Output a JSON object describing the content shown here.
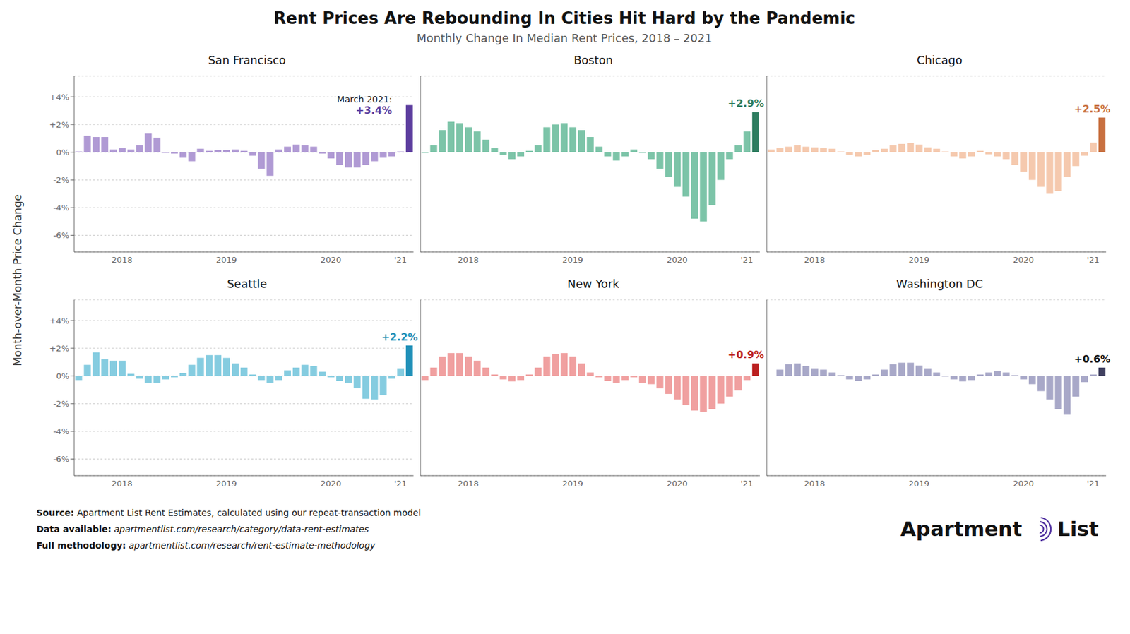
{
  "title": "Rent Prices Are Rebounding In Cities Hit Hard by the Pandemic",
  "subtitle": "Monthly Change In Median Rent Prices, 2018 – 2021",
  "ylabel": "Month-over-Month Price Change",
  "footer": [
    {
      "label": "Source:",
      "text": "Apartment List Rent Estimates, calculated using our repeat-transaction model"
    },
    {
      "label": "Data available:",
      "text": "apartmentlist.com/research/category/data-rent-estimates"
    },
    {
      "label": "Full methodology:",
      "text": "apartmentlist.com/research/rent-estimate-methodology"
    }
  ],
  "logo": [
    "Apartment",
    "List"
  ],
  "chart_data": [
    {
      "type": "bar",
      "title": "San Francisco",
      "categories": [
        null,
        null,
        null,
        null,
        null,
        "2018",
        null,
        null,
        null,
        null,
        null,
        null,
        null,
        null,
        null,
        null,
        null,
        "2019",
        null,
        null,
        null,
        null,
        null,
        null,
        null,
        null,
        null,
        null,
        null,
        "2020",
        null,
        null,
        null,
        null,
        null,
        null,
        null,
        "'21",
        null
      ],
      "values": [
        0.05,
        1.2,
        1.1,
        1.1,
        0.2,
        0.3,
        0.2,
        0.5,
        1.35,
        1.05,
        -0.05,
        -0.1,
        -0.4,
        -0.65,
        0.25,
        0.1,
        0.15,
        0.15,
        0.2,
        0.1,
        -0.25,
        -1.2,
        -1.7,
        0.2,
        0.4,
        0.55,
        0.5,
        0.4,
        -0.1,
        -0.45,
        -0.9,
        -1.1,
        -1.1,
        -0.9,
        -0.65,
        -0.4,
        -0.3,
        0.05,
        3.4
      ],
      "colors": [
        "#b09ad4",
        "#b09ad4",
        "#b09ad4",
        "#b09ad4",
        "#b09ad4",
        "#b09ad4",
        "#b09ad4",
        "#b09ad4",
        "#b09ad4",
        "#b09ad4",
        "#b09ad4",
        "#b09ad4",
        "#b09ad4",
        "#b09ad4",
        "#b09ad4",
        "#b09ad4",
        "#b09ad4",
        "#b09ad4",
        "#b09ad4",
        "#b09ad4",
        "#b09ad4",
        "#b09ad4",
        "#b09ad4",
        "#b09ad4",
        "#b09ad4",
        "#b09ad4",
        "#b09ad4",
        "#b09ad4",
        "#b09ad4",
        "#b09ad4",
        "#b09ad4",
        "#b09ad4",
        "#b09ad4",
        "#b09ad4",
        "#b09ad4",
        "#b09ad4",
        "#b09ad4",
        "#b09ad4",
        "#5c3d9e"
      ],
      "ylim": [
        -7.2,
        5.5
      ],
      "yticks": [
        {
          "value": -6,
          "label": "-6%"
        },
        {
          "value": -4,
          "label": "-4%"
        },
        {
          "value": -2,
          "label": "-2%"
        },
        {
          "value": 0,
          "label": "0%"
        },
        {
          "value": 2,
          "label": "+2%"
        },
        {
          "value": 4,
          "label": "+4%"
        }
      ],
      "grid": true,
      "annotations": [
        {
          "text": "March 2021:",
          "color": "#111111"
        },
        {
          "text": "+3.4%",
          "color": "#5c3d9e"
        }
      ]
    },
    {
      "type": "bar",
      "title": "Boston",
      "categories": [
        null,
        null,
        null,
        null,
        null,
        "2018",
        null,
        null,
        null,
        null,
        null,
        null,
        null,
        null,
        null,
        null,
        null,
        "2019",
        null,
        null,
        null,
        null,
        null,
        null,
        null,
        null,
        null,
        null,
        null,
        "2020",
        null,
        null,
        null,
        null,
        null,
        null,
        null,
        "'21",
        null
      ],
      "values": [
        -0.05,
        0.5,
        1.6,
        2.2,
        2.1,
        1.8,
        1.5,
        0.9,
        0.3,
        -0.2,
        -0.5,
        -0.3,
        0.1,
        0.5,
        1.8,
        2.0,
        2.1,
        1.8,
        1.6,
        1.1,
        0.4,
        -0.3,
        -0.6,
        -0.3,
        0.2,
        -0.05,
        -0.5,
        -1.2,
        -1.8,
        -2.5,
        -3.2,
        -4.8,
        -5.0,
        -3.8,
        -2.0,
        -0.5,
        0.5,
        1.5,
        2.9
      ],
      "colors": [
        "#7cc4a8",
        "#7cc4a8",
        "#7cc4a8",
        "#7cc4a8",
        "#7cc4a8",
        "#7cc4a8",
        "#7cc4a8",
        "#7cc4a8",
        "#7cc4a8",
        "#7cc4a8",
        "#7cc4a8",
        "#7cc4a8",
        "#7cc4a8",
        "#7cc4a8",
        "#7cc4a8",
        "#7cc4a8",
        "#7cc4a8",
        "#7cc4a8",
        "#7cc4a8",
        "#7cc4a8",
        "#7cc4a8",
        "#7cc4a8",
        "#7cc4a8",
        "#7cc4a8",
        "#7cc4a8",
        "#7cc4a8",
        "#7cc4a8",
        "#7cc4a8",
        "#7cc4a8",
        "#7cc4a8",
        "#7cc4a8",
        "#7cc4a8",
        "#7cc4a8",
        "#7cc4a8",
        "#7cc4a8",
        "#7cc4a8",
        "#7cc4a8",
        "#7cc4a8",
        "#2e7d60"
      ],
      "ylim": [
        -7.2,
        5.5
      ],
      "yticks": [
        {
          "value": -6,
          "label": "-6%"
        },
        {
          "value": -4,
          "label": "-4%"
        },
        {
          "value": -2,
          "label": "-2%"
        },
        {
          "value": 0,
          "label": "0%"
        },
        {
          "value": 2,
          "label": "+2%"
        },
        {
          "value": 4,
          "label": "+4%"
        }
      ],
      "grid": true,
      "tick_labels": "x",
      "annotations": [
        {
          "text": "+2.9%",
          "color": "#2e7d60"
        }
      ]
    },
    {
      "type": "bar",
      "title": "Chicago",
      "categories": [
        null,
        null,
        null,
        null,
        null,
        "2018",
        null,
        null,
        null,
        null,
        null,
        null,
        null,
        null,
        null,
        null,
        null,
        "2019",
        null,
        null,
        null,
        null,
        null,
        null,
        null,
        null,
        null,
        null,
        null,
        "2020",
        null,
        null,
        null,
        null,
        null,
        null,
        null,
        "'21",
        null
      ],
      "values": [
        0.2,
        0.3,
        0.4,
        0.5,
        0.4,
        0.35,
        0.3,
        0.25,
        0.05,
        -0.2,
        -0.3,
        -0.2,
        0.15,
        0.25,
        0.5,
        0.6,
        0.65,
        0.55,
        0.35,
        0.25,
        0.05,
        -0.3,
        -0.45,
        -0.3,
        0.1,
        -0.15,
        -0.3,
        -0.5,
        -0.9,
        -1.4,
        -2.0,
        -2.5,
        -3.0,
        -2.8,
        -1.8,
        -1.0,
        -0.25,
        0.7,
        2.5
      ],
      "colors": [
        "#f5c9ae",
        "#f5c9ae",
        "#f5c9ae",
        "#f5c9ae",
        "#f5c9ae",
        "#f5c9ae",
        "#f5c9ae",
        "#f5c9ae",
        "#f5c9ae",
        "#f5c9ae",
        "#f5c9ae",
        "#f5c9ae",
        "#f5c9ae",
        "#f5c9ae",
        "#f5c9ae",
        "#f5c9ae",
        "#f5c9ae",
        "#f5c9ae",
        "#f5c9ae",
        "#f5c9ae",
        "#f5c9ae",
        "#f5c9ae",
        "#f5c9ae",
        "#f5c9ae",
        "#f5c9ae",
        "#f5c9ae",
        "#f5c9ae",
        "#f5c9ae",
        "#f5c9ae",
        "#f5c9ae",
        "#f5c9ae",
        "#f5c9ae",
        "#f5c9ae",
        "#f5c9ae",
        "#f5c9ae",
        "#f5c9ae",
        "#f5c9ae",
        "#f5c9ae",
        "#c87040"
      ],
      "ylim": [
        -7.2,
        5.5
      ],
      "yticks": [
        {
          "value": -6,
          "label": "-6%"
        },
        {
          "value": -4,
          "label": "-4%"
        },
        {
          "value": -2,
          "label": "-2%"
        },
        {
          "value": 0,
          "label": "0%"
        },
        {
          "value": 2,
          "label": "+2%"
        },
        {
          "value": 4,
          "label": "+4%"
        }
      ],
      "grid": true,
      "tick_labels": "x",
      "annotations": [
        {
          "text": "+2.5%",
          "color": "#c87040"
        }
      ]
    },
    {
      "type": "bar",
      "title": "Seattle",
      "categories": [
        null,
        null,
        null,
        null,
        null,
        "2018",
        null,
        null,
        null,
        null,
        null,
        null,
        null,
        null,
        null,
        null,
        null,
        "2019",
        null,
        null,
        null,
        null,
        null,
        null,
        null,
        null,
        null,
        null,
        null,
        "2020",
        null,
        null,
        null,
        null,
        null,
        null,
        null,
        "'21",
        null
      ],
      "values": [
        -0.3,
        0.8,
        1.7,
        1.2,
        1.1,
        1.1,
        0.15,
        -0.2,
        -0.5,
        -0.5,
        -0.25,
        -0.1,
        0.2,
        0.8,
        1.3,
        1.5,
        1.5,
        1.3,
        0.9,
        0.6,
        0.1,
        -0.3,
        -0.5,
        -0.3,
        0.4,
        0.6,
        0.8,
        0.7,
        0.3,
        -0.1,
        -0.35,
        -0.5,
        -0.9,
        -1.65,
        -1.7,
        -1.4,
        -0.2,
        0.55,
        2.2
      ],
      "colors": [
        "#85cce0",
        "#85cce0",
        "#85cce0",
        "#85cce0",
        "#85cce0",
        "#85cce0",
        "#85cce0",
        "#85cce0",
        "#85cce0",
        "#85cce0",
        "#85cce0",
        "#85cce0",
        "#85cce0",
        "#85cce0",
        "#85cce0",
        "#85cce0",
        "#85cce0",
        "#85cce0",
        "#85cce0",
        "#85cce0",
        "#85cce0",
        "#85cce0",
        "#85cce0",
        "#85cce0",
        "#85cce0",
        "#85cce0",
        "#85cce0",
        "#85cce0",
        "#85cce0",
        "#85cce0",
        "#85cce0",
        "#85cce0",
        "#85cce0",
        "#85cce0",
        "#85cce0",
        "#85cce0",
        "#85cce0",
        "#85cce0",
        "#2090b8"
      ],
      "ylim": [
        -7.2,
        5.5
      ],
      "yticks": [
        {
          "value": -6,
          "label": "-6%"
        },
        {
          "value": -4,
          "label": "-4%"
        },
        {
          "value": -2,
          "label": "-2%"
        },
        {
          "value": 0,
          "label": "0%"
        },
        {
          "value": 2,
          "label": "+2%"
        },
        {
          "value": 4,
          "label": "+4%"
        }
      ],
      "grid": true,
      "annotations": [
        {
          "text": "+2.2%",
          "color": "#2090b8"
        }
      ]
    },
    {
      "type": "bar",
      "title": "New York",
      "categories": [
        null,
        null,
        null,
        null,
        null,
        "2018",
        null,
        null,
        null,
        null,
        null,
        null,
        null,
        null,
        null,
        null,
        null,
        "2019",
        null,
        null,
        null,
        null,
        null,
        null,
        null,
        null,
        null,
        null,
        null,
        "2020",
        null,
        null,
        null,
        null,
        null,
        null,
        null,
        "'21",
        null
      ],
      "values": [
        -0.3,
        0.6,
        1.4,
        1.65,
        1.65,
        1.4,
        1.1,
        0.6,
        0.1,
        -0.25,
        -0.4,
        -0.3,
        0.1,
        0.6,
        1.4,
        1.6,
        1.65,
        1.4,
        0.9,
        0.25,
        -0.1,
        -0.35,
        -0.5,
        -0.3,
        -0.1,
        -0.5,
        -0.6,
        -0.9,
        -1.3,
        -1.7,
        -2.1,
        -2.5,
        -2.6,
        -2.4,
        -2.0,
        -1.5,
        -1.05,
        -0.3,
        0.9
      ],
      "colors": [
        "#f0a0a0",
        "#f0a0a0",
        "#f0a0a0",
        "#f0a0a0",
        "#f0a0a0",
        "#f0a0a0",
        "#f0a0a0",
        "#f0a0a0",
        "#f0a0a0",
        "#f0a0a0",
        "#f0a0a0",
        "#f0a0a0",
        "#f0a0a0",
        "#f0a0a0",
        "#f0a0a0",
        "#f0a0a0",
        "#f0a0a0",
        "#f0a0a0",
        "#f0a0a0",
        "#f0a0a0",
        "#f0a0a0",
        "#f0a0a0",
        "#f0a0a0",
        "#f0a0a0",
        "#f0a0a0",
        "#f0a0a0",
        "#f0a0a0",
        "#f0a0a0",
        "#f0a0a0",
        "#f0a0a0",
        "#f0a0a0",
        "#f0a0a0",
        "#f0a0a0",
        "#f0a0a0",
        "#f0a0a0",
        "#f0a0a0",
        "#f0a0a0",
        "#f0a0a0",
        "#bb2020"
      ],
      "ylim": [
        -7.2,
        5.5
      ],
      "yticks": [
        {
          "value": -6,
          "label": "-6%"
        },
        {
          "value": -4,
          "label": "-4%"
        },
        {
          "value": -2,
          "label": "-2%"
        },
        {
          "value": 0,
          "label": "0%"
        },
        {
          "value": 2,
          "label": "+2%"
        },
        {
          "value": 4,
          "label": "+4%"
        }
      ],
      "grid": true,
      "tick_labels": "x",
      "annotations": [
        {
          "text": "+0.9%",
          "color": "#bb2020"
        }
      ]
    },
    {
      "type": "bar",
      "title": "Washington DC",
      "categories": [
        null,
        null,
        null,
        null,
        null,
        "2018",
        null,
        null,
        null,
        null,
        null,
        null,
        null,
        null,
        null,
        null,
        null,
        "2019",
        null,
        null,
        null,
        null,
        null,
        null,
        null,
        null,
        null,
        null,
        null,
        "2020",
        null,
        null,
        null,
        null,
        null,
        null,
        null,
        "'21",
        null
      ],
      "values": [
        0.0,
        0.45,
        0.85,
        0.9,
        0.7,
        0.55,
        0.45,
        0.25,
        0.05,
        -0.25,
        -0.35,
        -0.25,
        0.1,
        0.45,
        0.85,
        0.95,
        0.95,
        0.75,
        0.55,
        0.25,
        -0.05,
        -0.25,
        -0.4,
        -0.3,
        0.1,
        0.25,
        0.35,
        0.25,
        0.05,
        -0.25,
        -0.6,
        -1.1,
        -1.7,
        -2.4,
        -2.8,
        -1.5,
        -0.45,
        0.1,
        0.6
      ],
      "colors": [
        "#a8a8c8",
        "#a8a8c8",
        "#a8a8c8",
        "#a8a8c8",
        "#a8a8c8",
        "#a8a8c8",
        "#a8a8c8",
        "#a8a8c8",
        "#a8a8c8",
        "#a8a8c8",
        "#a8a8c8",
        "#a8a8c8",
        "#a8a8c8",
        "#a8a8c8",
        "#a8a8c8",
        "#a8a8c8",
        "#a8a8c8",
        "#a8a8c8",
        "#a8a8c8",
        "#a8a8c8",
        "#a8a8c8",
        "#a8a8c8",
        "#a8a8c8",
        "#a8a8c8",
        "#a8a8c8",
        "#a8a8c8",
        "#a8a8c8",
        "#a8a8c8",
        "#a8a8c8",
        "#a8a8c8",
        "#a8a8c8",
        "#a8a8c8",
        "#a8a8c8",
        "#a8a8c8",
        "#a8a8c8",
        "#a8a8c8",
        "#a8a8c8",
        "#a8a8c8",
        "#404060"
      ],
      "ylim": [
        -7.2,
        5.5
      ],
      "yticks": [
        {
          "value": -6,
          "label": "-6%"
        },
        {
          "value": -4,
          "label": "-4%"
        },
        {
          "value": -2,
          "label": "-2%"
        },
        {
          "value": 0,
          "label": "0%"
        },
        {
          "value": 2,
          "label": "+2%"
        },
        {
          "value": 4,
          "label": "+4%"
        }
      ],
      "grid": true,
      "tick_labels": "x",
      "annotations": [
        {
          "text": "+0.6%",
          "color": "#111111"
        }
      ]
    }
  ]
}
